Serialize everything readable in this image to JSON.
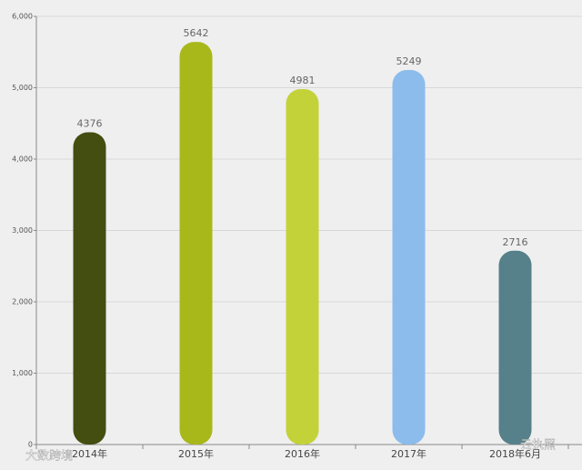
{
  "chart_data": {
    "type": "bar",
    "categories": [
      "2014年",
      "2015年",
      "2016年",
      "2017年",
      "2018年6月"
    ],
    "values": [
      4376,
      5642,
      4981,
      5249,
      2716
    ],
    "colors": [
      "#434e10",
      "#a8b81a",
      "#c4d23a",
      "#8bbcec",
      "#56808a"
    ],
    "ylim": [
      0,
      6000
    ],
    "yticks": [
      0,
      {
        "value": 1000,
        "label": "1,000"
      },
      {
        "value": 2000,
        "label": "2,000"
      },
      {
        "value": 3000,
        "label": "3,000"
      },
      {
        "value": 4000,
        "label": "4,000"
      },
      {
        "value": 5000,
        "label": "5,000"
      },
      {
        "value": 6000,
        "label": "6,000"
      }
    ],
    "grid": true
  },
  "watermarks": [
    "大数跨境",
    "云执照"
  ]
}
